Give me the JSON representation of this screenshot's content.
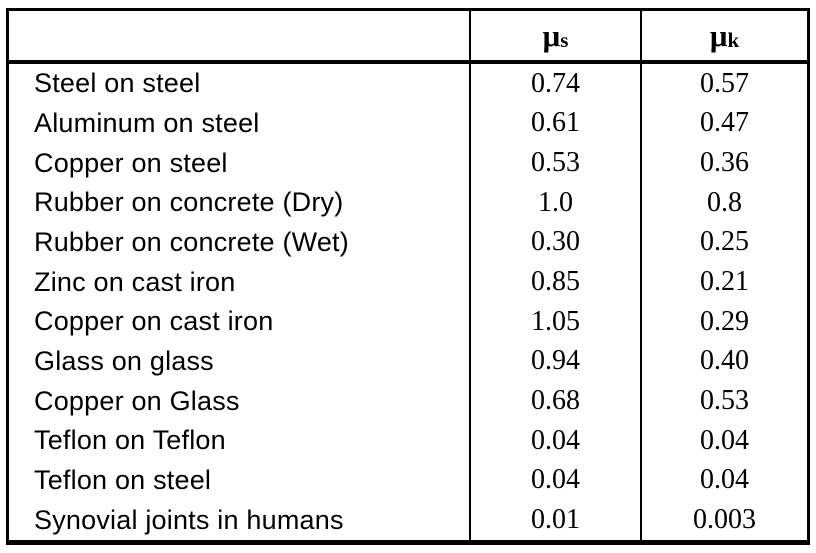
{
  "table": {
    "header": {
      "surfaces_label": "",
      "mu_s": {
        "symbol": "μ",
        "subscript": "s"
      },
      "mu_k": {
        "symbol": "μ",
        "subscript": "k"
      }
    },
    "rows": [
      {
        "label": "Steel on steel",
        "mu_s": "0.74",
        "mu_k": "0.57"
      },
      {
        "label": "Aluminum on steel",
        "mu_s": "0.61",
        "mu_k": "0.47"
      },
      {
        "label": "Copper on steel",
        "mu_s": "0.53",
        "mu_k": "0.36"
      },
      {
        "label": "Rubber on concrete (Dry)",
        "mu_s": "1.0",
        "mu_k": "0.8"
      },
      {
        "label": "Rubber on concrete (Wet)",
        "mu_s": "0.30",
        "mu_k": "0.25"
      },
      {
        "label": "Zinc on cast iron",
        "mu_s": "0.85",
        "mu_k": "0.21"
      },
      {
        "label": "Copper on cast iron",
        "mu_s": "1.05",
        "mu_k": "0.29"
      },
      {
        "label": "Glass on glass",
        "mu_s": "0.94",
        "mu_k": "0.40"
      },
      {
        "label": "Copper on Glass",
        "mu_s": "0.68",
        "mu_k": "0.53"
      },
      {
        "label": "Teflon on Teflon",
        "mu_s": "0.04",
        "mu_k": "0.04"
      },
      {
        "label": "Teflon on steel",
        "mu_s": "0.04",
        "mu_k": "0.04"
      },
      {
        "label": "Synovial joints in humans",
        "mu_s": "0.01",
        "mu_k": "0.003"
      }
    ]
  },
  "chart_data": {
    "type": "table",
    "columns": [
      "",
      "μs",
      "μk"
    ],
    "rows": [
      [
        "Steel on steel",
        0.74,
        0.57
      ],
      [
        "Aluminum on steel",
        0.61,
        0.47
      ],
      [
        "Copper on steel",
        0.53,
        0.36
      ],
      [
        "Rubber on concrete (Dry)",
        1.0,
        0.8
      ],
      [
        "Rubber on concrete (Wet)",
        0.3,
        0.25
      ],
      [
        "Zinc on cast iron",
        0.85,
        0.21
      ],
      [
        "Copper on cast iron",
        1.05,
        0.29
      ],
      [
        "Glass on glass",
        0.94,
        0.4
      ],
      [
        "Copper on Glass",
        0.68,
        0.53
      ],
      [
        "Teflon on Teflon",
        0.04,
        0.04
      ],
      [
        "Teflon on steel",
        0.04,
        0.04
      ],
      [
        "Synovial joints in humans",
        0.01,
        0.003
      ]
    ],
    "layout": {
      "grid": "column separators + heavy rule under header",
      "border": "heavy outer black border"
    },
    "colors": {
      "border": "#000000",
      "text": "#000000",
      "background": "#ffffff"
    }
  }
}
